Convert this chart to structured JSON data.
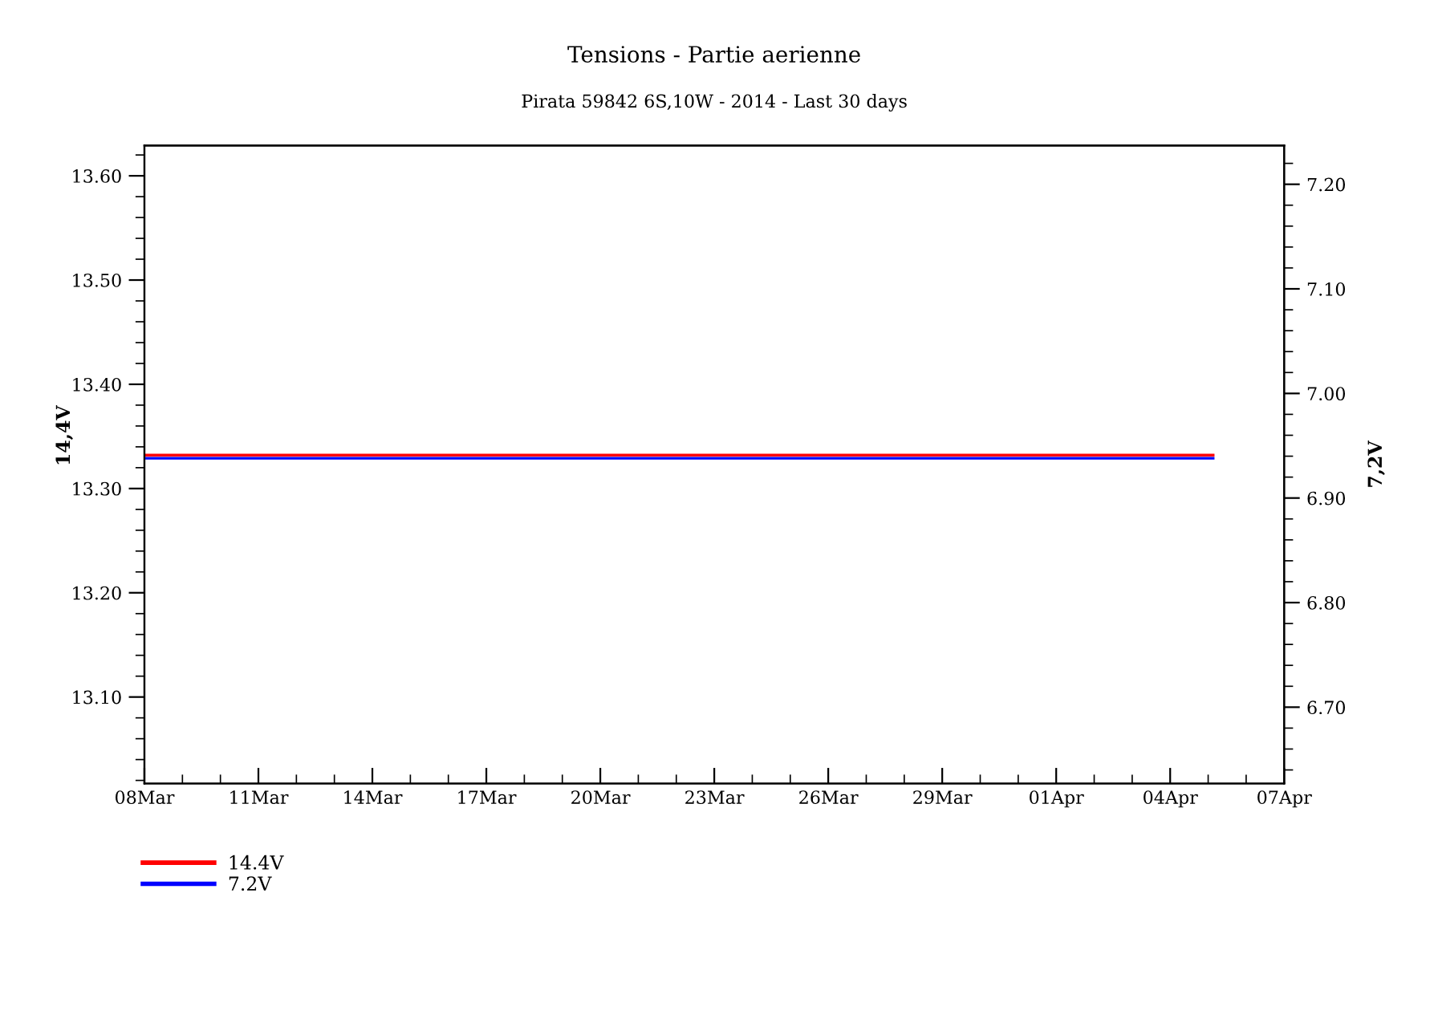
{
  "chart_data": {
    "type": "line",
    "title": "Tensions - Partie aerienne",
    "subtitle": "Pirata 59842 6S,10W - 2014 - Last 30 days",
    "ylabel": "14,4V",
    "y2label": "7,2V",
    "x": [
      "2014-03-08",
      "2014-04-05T04:00"
    ],
    "series": [
      {
        "name": "14.4V",
        "color": "#ff0000",
        "values": [
          13.332,
          13.332
        ]
      },
      {
        "name": "7.2V",
        "color": "#0000ff",
        "axis": "y2",
        "values": [
          6.938,
          6.938
        ]
      }
    ],
    "xlim": [
      "2014-03-08",
      "2014-04-07"
    ],
    "xticks": [
      {
        "value": "2014-03-08",
        "label": "08Mar"
      },
      {
        "value": "2014-03-11",
        "label": "11Mar"
      },
      {
        "value": "2014-03-14",
        "label": "14Mar"
      },
      {
        "value": "2014-03-17",
        "label": "17Mar"
      },
      {
        "value": "2014-03-20",
        "label": "20Mar"
      },
      {
        "value": "2014-03-23",
        "label": "23Mar"
      },
      {
        "value": "2014-03-26",
        "label": "26Mar"
      },
      {
        "value": "2014-03-29",
        "label": "29Mar"
      },
      {
        "value": "2014-04-01",
        "label": "01Apr"
      },
      {
        "value": "2014-04-04",
        "label": "04Apr"
      },
      {
        "value": "2014-04-07",
        "label": "07Apr"
      }
    ],
    "ylim": [
      13.017,
      13.629
    ],
    "yticks": [
      {
        "value": 13.1,
        "label": "13.10"
      },
      {
        "value": 13.2,
        "label": "13.20"
      },
      {
        "value": 13.3,
        "label": "13.30"
      },
      {
        "value": 13.4,
        "label": "13.40"
      },
      {
        "value": 13.5,
        "label": "13.50"
      },
      {
        "value": 13.6,
        "label": "13.60"
      }
    ],
    "y2lim": [
      6.627,
      7.237
    ],
    "y2ticks": [
      {
        "value": 6.7,
        "label": "6.70"
      },
      {
        "value": 6.8,
        "label": "6.80"
      },
      {
        "value": 6.9,
        "label": "6.90"
      },
      {
        "value": 7.0,
        "label": "7.00"
      },
      {
        "value": 7.1,
        "label": "7.10"
      },
      {
        "value": 7.2,
        "label": "7.20"
      }
    ],
    "legend": "bottom left"
  }
}
